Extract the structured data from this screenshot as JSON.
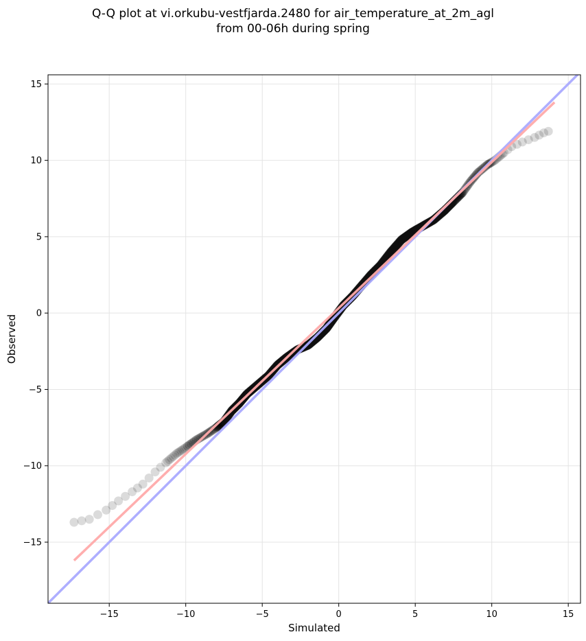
{
  "chart_data": {
    "type": "scatter",
    "title_line1": "Q-Q plot at vi.orkubu-vestfjarda.2480 for air_temperature_at_2m_agl",
    "title_line2": "from 00-06h during spring",
    "xlabel": "Simulated",
    "ylabel": "Observed",
    "xlim": [
      -19.0,
      15.8
    ],
    "ylim": [
      -19.0,
      15.6
    ],
    "xticks": [
      -15,
      -10,
      -5,
      0,
      5,
      10,
      15
    ],
    "yticks": [
      -15,
      -10,
      -5,
      0,
      5,
      10,
      15
    ],
    "xtick_labels": [
      "−15",
      "−10",
      "−5",
      "0",
      "5",
      "10",
      "15"
    ],
    "ytick_labels": [
      "−15",
      "−10",
      "−5",
      "0",
      "5",
      "10",
      "15"
    ],
    "grid": true,
    "reference_line": {
      "x": [
        -19.0,
        15.8
      ],
      "y": [
        -19.0,
        15.8
      ],
      "color": "#aaaaff"
    },
    "fit_line": {
      "x": [
        -17.3,
        14.1
      ],
      "y": [
        -16.2,
        13.8
      ],
      "color": "#ffaaaa"
    },
    "quantiles_curve": [
      [
        -17.3,
        -13.7
      ],
      [
        -16.3,
        -13.5
      ],
      [
        -15.2,
        -12.9
      ],
      [
        -14.4,
        -12.3
      ],
      [
        -13.5,
        -11.7
      ],
      [
        -12.8,
        -11.2
      ],
      [
        -12.0,
        -10.4
      ],
      [
        -11.3,
        -9.8
      ],
      [
        -10.6,
        -9.2
      ],
      [
        -10.0,
        -8.8
      ],
      [
        -9.3,
        -8.3
      ],
      [
        -8.6,
        -7.9
      ],
      [
        -8.0,
        -7.5
      ],
      [
        -7.5,
        -7.1
      ],
      [
        -7.0,
        -6.4
      ],
      [
        -6.5,
        -5.9
      ],
      [
        -6.0,
        -5.3
      ],
      [
        -5.3,
        -4.7
      ],
      [
        -4.6,
        -4.1
      ],
      [
        -4.0,
        -3.4
      ],
      [
        -3.4,
        -2.9
      ],
      [
        -2.7,
        -2.4
      ],
      [
        -2.0,
        -2.1
      ],
      [
        -1.4,
        -1.6
      ],
      [
        -0.8,
        -1.0
      ],
      [
        -0.3,
        -0.3
      ],
      [
        0.3,
        0.5
      ],
      [
        0.9,
        1.1
      ],
      [
        1.5,
        1.8
      ],
      [
        2.1,
        2.5
      ],
      [
        2.7,
        3.1
      ],
      [
        3.4,
        4.0
      ],
      [
        4.1,
        4.8
      ],
      [
        4.8,
        5.3
      ],
      [
        5.5,
        5.7
      ],
      [
        6.2,
        6.1
      ],
      [
        6.9,
        6.7
      ],
      [
        7.5,
        7.3
      ],
      [
        8.1,
        7.9
      ],
      [
        8.6,
        8.6
      ],
      [
        9.1,
        9.2
      ],
      [
        9.7,
        9.7
      ],
      [
        10.2,
        10.0
      ],
      [
        10.8,
        10.5
      ],
      [
        11.3,
        10.9
      ],
      [
        12.0,
        11.2
      ],
      [
        12.8,
        11.5
      ],
      [
        13.4,
        11.8
      ],
      [
        14.0,
        12.0
      ]
    ]
  }
}
